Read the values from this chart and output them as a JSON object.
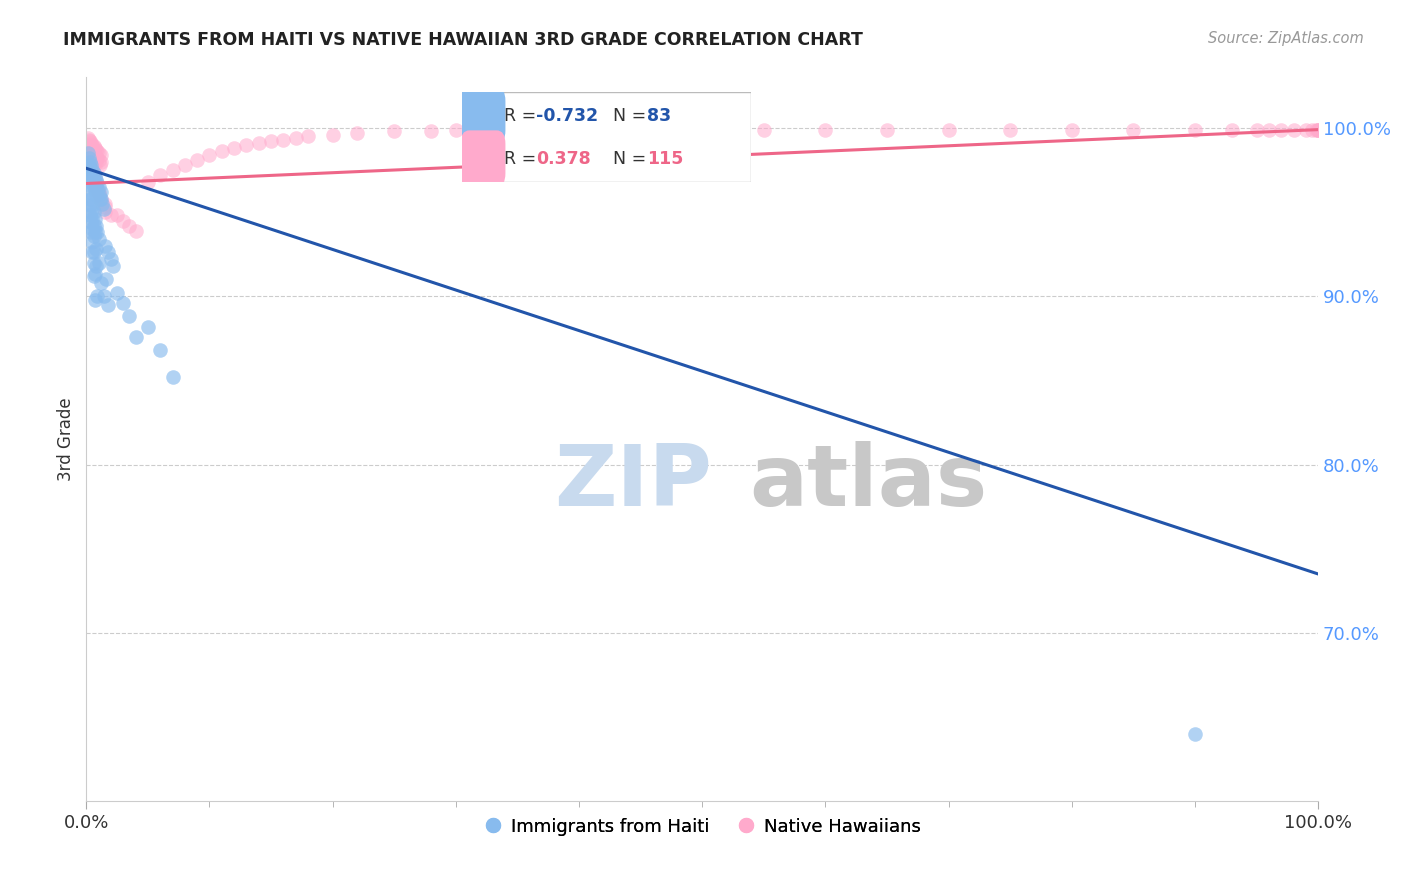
{
  "title": "IMMIGRANTS FROM HAITI VS NATIVE HAWAIIAN 3RD GRADE CORRELATION CHART",
  "source": "Source: ZipAtlas.com",
  "ylabel": "3rd Grade",
  "xlim": [
    0.0,
    1.0
  ],
  "ylim": [
    0.6,
    1.03
  ],
  "x_tick_labels": [
    "0.0%",
    "100.0%"
  ],
  "y_tick_labels": [
    "100.0%",
    "90.0%",
    "80.0%",
    "70.0%"
  ],
  "y_tick_positions": [
    1.0,
    0.9,
    0.8,
    0.7
  ],
  "blue_R": -0.732,
  "blue_N": 83,
  "pink_R": 0.378,
  "pink_N": 115,
  "blue_color": "#88BBEE",
  "pink_color": "#FFAACC",
  "blue_line_color": "#2255AA",
  "pink_line_color": "#EE6688",
  "legend_label_blue": "Immigrants from Haiti",
  "legend_label_pink": "Native Hawaiians",
  "watermark_zip": "ZIP",
  "watermark_atlas": "atlas",
  "background_color": "#ffffff",
  "blue_line_x0": 0.0,
  "blue_line_y0": 0.976,
  "blue_line_x1": 1.0,
  "blue_line_y1": 0.735,
  "pink_line_x0": 0.0,
  "pink_line_y0": 0.967,
  "pink_line_x1": 1.0,
  "pink_line_y1": 0.999,
  "blue_scatter_x": [
    0.001,
    0.002,
    0.002,
    0.003,
    0.003,
    0.003,
    0.004,
    0.004,
    0.004,
    0.005,
    0.005,
    0.005,
    0.006,
    0.006,
    0.006,
    0.007,
    0.007,
    0.007,
    0.008,
    0.008,
    0.008,
    0.009,
    0.009,
    0.01,
    0.01,
    0.011,
    0.012,
    0.012,
    0.013,
    0.014,
    0.001,
    0.002,
    0.003,
    0.004,
    0.005,
    0.006,
    0.007,
    0.008,
    0.009,
    0.01,
    0.002,
    0.003,
    0.004,
    0.005,
    0.006,
    0.007,
    0.015,
    0.018,
    0.02,
    0.022,
    0.003,
    0.004,
    0.005,
    0.006,
    0.008,
    0.01,
    0.016,
    0.025,
    0.03,
    0.004,
    0.005,
    0.006,
    0.008,
    0.012,
    0.014,
    0.035,
    0.005,
    0.006,
    0.007,
    0.018,
    0.04,
    0.006,
    0.009,
    0.05,
    0.06,
    0.007,
    0.07,
    0.9
  ],
  "blue_scatter_y": [
    0.985,
    0.982,
    0.978,
    0.98,
    0.976,
    0.972,
    0.978,
    0.974,
    0.97,
    0.975,
    0.971,
    0.967,
    0.973,
    0.969,
    0.965,
    0.971,
    0.967,
    0.963,
    0.969,
    0.965,
    0.96,
    0.967,
    0.963,
    0.965,
    0.96,
    0.958,
    0.962,
    0.958,
    0.955,
    0.952,
    0.97,
    0.966,
    0.962,
    0.958,
    0.954,
    0.95,
    0.946,
    0.942,
    0.938,
    0.934,
    0.958,
    0.954,
    0.95,
    0.946,
    0.942,
    0.938,
    0.93,
    0.926,
    0.922,
    0.918,
    0.948,
    0.944,
    0.94,
    0.936,
    0.928,
    0.92,
    0.91,
    0.902,
    0.896,
    0.938,
    0.932,
    0.926,
    0.918,
    0.908,
    0.9,
    0.888,
    0.926,
    0.92,
    0.913,
    0.895,
    0.876,
    0.912,
    0.9,
    0.882,
    0.868,
    0.898,
    0.852,
    0.64
  ],
  "pink_scatter_x": [
    0.001,
    0.001,
    0.002,
    0.002,
    0.002,
    0.003,
    0.003,
    0.003,
    0.004,
    0.004,
    0.004,
    0.005,
    0.005,
    0.005,
    0.006,
    0.006,
    0.006,
    0.007,
    0.007,
    0.007,
    0.008,
    0.008,
    0.008,
    0.009,
    0.009,
    0.01,
    0.01,
    0.011,
    0.012,
    0.012,
    0.001,
    0.002,
    0.003,
    0.004,
    0.005,
    0.006,
    0.007,
    0.008,
    0.009,
    0.01,
    0.002,
    0.003,
    0.004,
    0.005,
    0.006,
    0.007,
    0.008,
    0.01,
    0.012,
    0.015,
    0.003,
    0.004,
    0.005,
    0.006,
    0.007,
    0.009,
    0.012,
    0.015,
    0.02,
    0.004,
    0.005,
    0.006,
    0.008,
    0.01,
    0.015,
    0.025,
    0.03,
    0.035,
    0.04,
    0.05,
    0.06,
    0.07,
    0.08,
    0.09,
    0.1,
    0.11,
    0.12,
    0.13,
    0.14,
    0.15,
    0.16,
    0.17,
    0.18,
    0.2,
    0.22,
    0.25,
    0.28,
    0.3,
    0.32,
    0.35,
    0.38,
    0.4,
    0.43,
    0.46,
    0.5,
    0.55,
    0.6,
    0.65,
    0.7,
    0.75,
    0.8,
    0.85,
    0.9,
    0.93,
    0.95,
    0.96,
    0.97,
    0.98,
    0.99,
    0.995,
    0.998,
    1.0,
    1.0,
    1.0
  ],
  "pink_scatter_y": [
    0.994,
    0.99,
    0.993,
    0.989,
    0.985,
    0.992,
    0.988,
    0.984,
    0.991,
    0.987,
    0.983,
    0.99,
    0.986,
    0.982,
    0.989,
    0.985,
    0.981,
    0.988,
    0.984,
    0.98,
    0.987,
    0.983,
    0.979,
    0.986,
    0.982,
    0.985,
    0.981,
    0.978,
    0.984,
    0.98,
    0.988,
    0.985,
    0.982,
    0.979,
    0.976,
    0.973,
    0.97,
    0.967,
    0.964,
    0.961,
    0.983,
    0.98,
    0.977,
    0.974,
    0.971,
    0.968,
    0.965,
    0.96,
    0.956,
    0.95,
    0.978,
    0.975,
    0.972,
    0.969,
    0.966,
    0.963,
    0.958,
    0.953,
    0.948,
    0.975,
    0.972,
    0.969,
    0.965,
    0.962,
    0.955,
    0.948,
    0.945,
    0.942,
    0.939,
    0.968,
    0.972,
    0.975,
    0.978,
    0.981,
    0.984,
    0.986,
    0.988,
    0.99,
    0.991,
    0.992,
    0.993,
    0.994,
    0.995,
    0.996,
    0.997,
    0.998,
    0.998,
    0.999,
    0.999,
    0.999,
    0.999,
    0.999,
    0.999,
    0.999,
    0.999,
    0.999,
    0.999,
    0.999,
    0.999,
    0.999,
    0.999,
    0.999,
    0.999,
    0.999,
    0.999,
    0.999,
    0.999,
    0.999,
    0.999,
    0.999,
    0.999,
    0.999,
    0.999,
    0.999
  ]
}
